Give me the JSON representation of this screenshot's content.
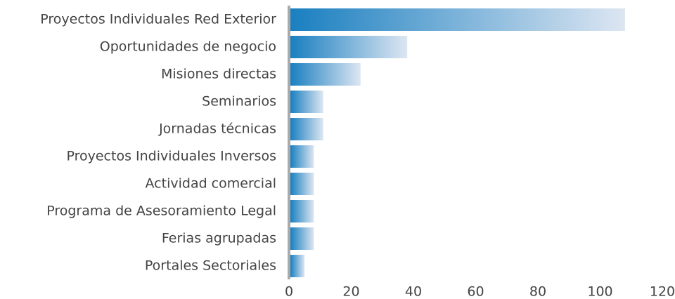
{
  "chart_data": {
    "type": "barh",
    "categories": [
      "Proyectos Individuales Red Exterior",
      "Oportunidades de negocio",
      "Misiones directas",
      "Seminarios",
      "Jornadas técnicas",
      "Proyectos Individuales Inversos",
      "Actividad comercial",
      "Programa de Asesoramiento Legal",
      "Ferias agrupadas",
      "Portales Sectoriales"
    ],
    "values": [
      108,
      38,
      23,
      11,
      11,
      8,
      8,
      8,
      8,
      5
    ],
    "gradient": [
      "#1a7fc0",
      "#dde6f2"
    ],
    "xlim": [
      0,
      120
    ],
    "xticks": [
      0,
      20,
      40,
      60,
      80,
      100,
      120
    ],
    "grid": false
  }
}
